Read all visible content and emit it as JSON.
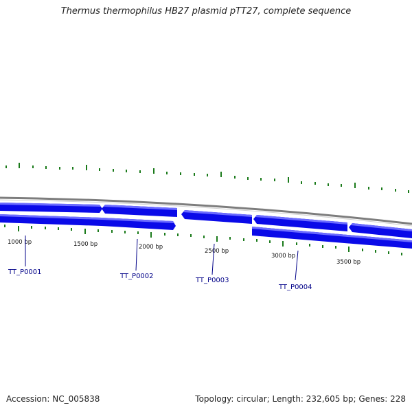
{
  "title": "Thermus thermophilus HB27 plasmid pTT27, complete sequence",
  "footer": {
    "accession": "Accession: NC_005838",
    "stats": "Topology: circular; Length: 232,605 bp; Genes: 228"
  },
  "scale_labels": [
    "1000 bp",
    "1500 bp",
    "2000 bp",
    "2500 bp",
    "3000 bp",
    "3500 bp"
  ],
  "genes": [
    "TT_P0001",
    "TT_P0002",
    "TT_P0003",
    "TT_P0004"
  ],
  "colors": {
    "feature_fill": "#0a0ae8",
    "feature_highlight": "#6b6bff",
    "feature_label": "#000088",
    "backbone": "#888888",
    "gc_tick": "#1a7a1a",
    "scale_text": "#111111"
  }
}
